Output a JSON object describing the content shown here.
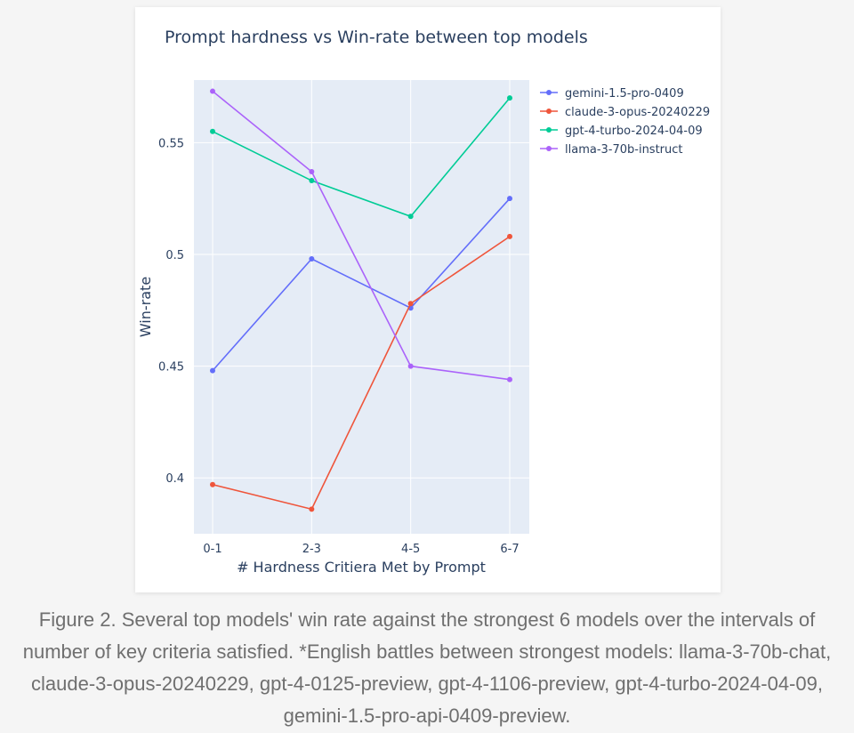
{
  "chart_data": {
    "type": "line",
    "title": "Prompt hardness vs Win-rate between top models",
    "xlabel": "# Hardness Critiera Met by Prompt",
    "ylabel": "Win-rate",
    "categories": [
      "0-1",
      "2-3",
      "4-5",
      "6-7"
    ],
    "ylim": [
      0.375,
      0.578
    ],
    "yticks": [
      0.4,
      0.45,
      0.5,
      0.55
    ],
    "ytick_labels": [
      "0.4",
      "0.45",
      "0.5",
      "0.55"
    ],
    "grid": true,
    "legend_position": "top-right",
    "plot_background": "#e5ecf6",
    "series": [
      {
        "name": "gemini-1.5-pro-0409",
        "color": "#636efa",
        "values": [
          0.448,
          0.498,
          0.476,
          0.525
        ]
      },
      {
        "name": "claude-3-opus-20240229",
        "color": "#ef553b",
        "values": [
          0.397,
          0.386,
          0.478,
          0.508
        ]
      },
      {
        "name": "gpt-4-turbo-2024-04-09",
        "color": "#00cc96",
        "values": [
          0.555,
          0.533,
          0.517,
          0.57
        ]
      },
      {
        "name": "llama-3-70b-instruct",
        "color": "#ab63fa",
        "values": [
          0.573,
          0.537,
          0.45,
          0.444
        ]
      }
    ]
  },
  "caption": "Figure 2. Several top models' win rate against the strongest 6 models over the intervals of number of key criteria satisfied. *English battles between strongest models: llama-3-70b-chat, claude-3-opus-20240229, gpt-4-0125-preview, gpt-4-1106-preview, gpt-4-turbo-2024-04-09, gemini-1.5-pro-api-0409-preview."
}
